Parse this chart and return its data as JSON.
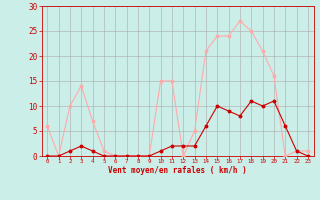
{
  "x": [
    0,
    1,
    2,
    3,
    4,
    5,
    6,
    7,
    8,
    9,
    10,
    11,
    12,
    13,
    14,
    15,
    16,
    17,
    18,
    19,
    20,
    21,
    22,
    23
  ],
  "rafales": [
    6,
    0,
    10,
    14,
    7,
    1,
    0,
    0,
    0,
    0,
    15,
    15,
    0,
    5,
    21,
    24,
    24,
    27,
    25,
    21,
    16,
    0,
    1,
    1
  ],
  "moyen": [
    0,
    0,
    1,
    2,
    1,
    0,
    0,
    0,
    0,
    0,
    1,
    2,
    2,
    2,
    6,
    10,
    9,
    8,
    11,
    10,
    11,
    6,
    1,
    0
  ],
  "color_rafales": "#ffaaaa",
  "color_moyen": "#cc0000",
  "bg_color": "#cceee8",
  "grid_color": "#aaaaaa",
  "xlabel": "Vent moyen/en rafales ( km/h )",
  "ylabel_ticks": [
    0,
    5,
    10,
    15,
    20,
    25,
    30
  ],
  "xlim": [
    -0.5,
    23.5
  ],
  "ylim": [
    0,
    30
  ],
  "tick_color": "#cc0000",
  "xlabel_color": "#cc0000"
}
